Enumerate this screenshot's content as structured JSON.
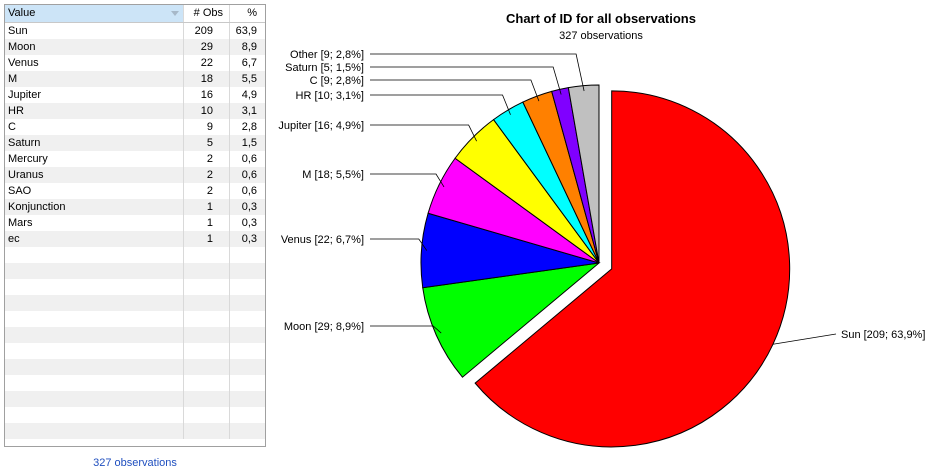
{
  "table": {
    "columns": [
      "Value",
      "# Obs",
      "%"
    ],
    "rows": [
      [
        "Sun",
        "209",
        "63,9"
      ],
      [
        "Moon",
        "29",
        "8,9"
      ],
      [
        "Venus",
        "22",
        "6,7"
      ],
      [
        "M",
        "18",
        "5,5"
      ],
      [
        "Jupiter",
        "16",
        "4,9"
      ],
      [
        "HR",
        "10",
        "3,1"
      ],
      [
        "C",
        "9",
        "2,8"
      ],
      [
        "Saturn",
        "5",
        "1,5"
      ],
      [
        "Mercury",
        "2",
        "0,6"
      ],
      [
        "Uranus",
        "2",
        "0,6"
      ],
      [
        "SAO",
        "2",
        "0,6"
      ],
      [
        "Konjunction",
        "1",
        "0,3"
      ],
      [
        "Mars",
        "1",
        "0,3"
      ],
      [
        "ec",
        "1",
        "0,3"
      ]
    ],
    "footer": "327 observations"
  },
  "chart_data": {
    "type": "pie",
    "title": "Chart of ID for all observations",
    "subtitle": "327 observations",
    "slices": [
      {
        "label": "Sun [209; 63,9%]",
        "value": 209,
        "color": "#ff0000",
        "exploded": true
      },
      {
        "label": "Moon [29; 8,9%]",
        "value": 29,
        "color": "#00ff00"
      },
      {
        "label": "Venus [22; 6,7%]",
        "value": 22,
        "color": "#0000ff"
      },
      {
        "label": "M [18; 5,5%]",
        "value": 18,
        "color": "#ff00ff"
      },
      {
        "label": "Jupiter [16; 4,9%]",
        "value": 16,
        "color": "#ffff00"
      },
      {
        "label": "HR [10; 3,1%]",
        "value": 10,
        "color": "#00ffff"
      },
      {
        "label": "C [9; 2,8%]",
        "value": 9,
        "color": "#ff8000"
      },
      {
        "label": "Saturn [5; 1,5%]",
        "value": 5,
        "color": "#8000ff"
      },
      {
        "label": "Other [9; 2,8%]",
        "value": 9,
        "color": "#c0c0c0"
      }
    ]
  }
}
